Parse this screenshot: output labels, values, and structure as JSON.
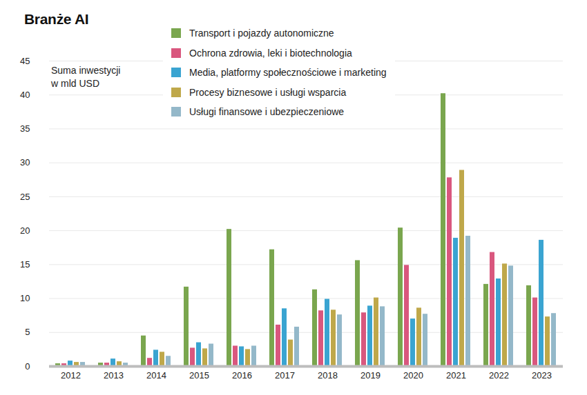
{
  "chart_data": {
    "type": "bar",
    "title": "Branże AI",
    "y_label": "Suma inwestycji\nw mld USD",
    "categories": [
      "2012",
      "2013",
      "2014",
      "2015",
      "2016",
      "2017",
      "2018",
      "2019",
      "2020",
      "2021",
      "2022",
      "2023"
    ],
    "series": [
      {
        "name": "Transport i pojazdy autonomiczne",
        "color": "#7aa64e",
        "values": [
          0.4,
          0.5,
          4.5,
          11.7,
          20.2,
          17.2,
          11.3,
          15.6,
          20.4,
          40.2,
          12.1,
          11.9
        ]
      },
      {
        "name": "Ochrona zdrowia, leki i biotechnologia",
        "color": "#d9577e",
        "values": [
          0.4,
          0.5,
          1.2,
          2.7,
          3.0,
          6.1,
          8.2,
          7.9,
          14.9,
          27.8,
          16.8,
          10.1
        ]
      },
      {
        "name": "Media, platformy społecznościowe i marketing",
        "color": "#3aa4d1",
        "values": [
          0.8,
          1.1,
          2.4,
          3.5,
          2.9,
          8.5,
          9.9,
          8.9,
          7.0,
          18.9,
          12.9,
          18.6
        ]
      },
      {
        "name": "Procesy biznesowe i usługi wsparcia",
        "color": "#bfa84a",
        "values": [
          0.6,
          0.7,
          2.1,
          2.6,
          2.5,
          3.9,
          8.3,
          10.1,
          8.6,
          28.9,
          15.1,
          7.3
        ]
      },
      {
        "name": "Usługi finansowe i ubezpieczeniowe",
        "color": "#94b8c9",
        "values": [
          0.6,
          0.5,
          1.5,
          3.3,
          3.0,
          5.8,
          7.6,
          8.8,
          7.7,
          19.2,
          14.8,
          7.8
        ]
      }
    ],
    "ylim": [
      0,
      45
    ],
    "yticks": [
      0,
      5,
      10,
      15,
      20,
      25,
      30,
      35,
      40,
      45
    ],
    "grid": true,
    "legend": "top"
  }
}
